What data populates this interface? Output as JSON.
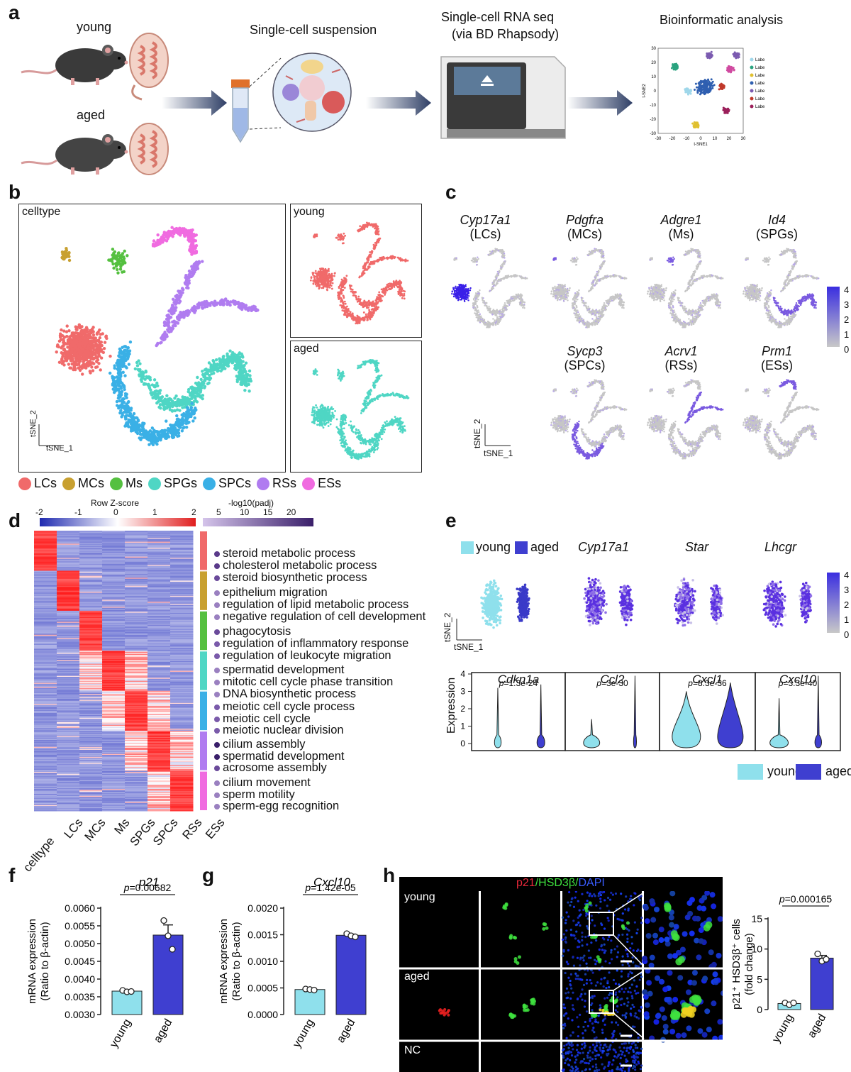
{
  "panels": {
    "a": "a",
    "b": "b",
    "c": "c",
    "d": "d",
    "e": "e",
    "f": "f",
    "g": "g",
    "h": "h"
  },
  "panel_a": {
    "young": "young",
    "aged": "aged",
    "suspension": "Single-cell suspension",
    "seq_line1": "Single-cell RNA seq",
    "seq_line2": "(via BD Rhapsody)",
    "bioinfo": "Bioinformatic analysis",
    "mini_tsne": {
      "xlabel": "t-SNE1",
      "ylabel": "t-SNE2",
      "x_ticks": [
        "-30",
        "-20",
        "-10",
        "0",
        "10",
        "20",
        "30"
      ],
      "y_ticks": [
        "30",
        "20",
        "10",
        "0",
        "-10",
        "-20",
        "-30"
      ],
      "legend": [
        "Label",
        "Label",
        "Label",
        "Label",
        "Label",
        "Label",
        "Label"
      ],
      "colors": [
        "#9fd7ea",
        "#2aa37f",
        "#e0c030",
        "#2f5fb0",
        "#7b5bb0",
        "#c0392b",
        "#9b1f5a"
      ]
    }
  },
  "panel_b": {
    "celltype": "celltype",
    "young": "young",
    "aged": "aged",
    "xaxis": "tSNE_1",
    "yaxis": "tSNE_2",
    "legend": [
      {
        "label": "LCs",
        "color": "#f06a6a"
      },
      {
        "label": "MCs",
        "color": "#c8a030"
      },
      {
        "label": "Ms",
        "color": "#55c040"
      },
      {
        "label": "SPGs",
        "color": "#4fd6c4"
      },
      {
        "label": "SPCs",
        "color": "#3ab0e6"
      },
      {
        "label": "RSs",
        "color": "#b07cf0"
      },
      {
        "label": "ESs",
        "color": "#f06be0"
      }
    ]
  },
  "panel_c": {
    "genes": [
      {
        "gene": "Cyp17a1",
        "cell": "(LCs)"
      },
      {
        "gene": "Pdgfra",
        "cell": "(MCs)"
      },
      {
        "gene": "Adgre1",
        "cell": "(Ms)"
      },
      {
        "gene": "Id4",
        "cell": "(SPGs)"
      },
      {
        "gene": "Sycp3",
        "cell": "(SPCs)"
      },
      {
        "gene": "Acrv1",
        "cell": "(RSs)"
      },
      {
        "gene": "Prm1",
        "cell": "(ESs)"
      }
    ],
    "colorbar_ticks": [
      "4",
      "3",
      "2",
      "1",
      "0"
    ],
    "xaxis": "tSNE_1",
    "yaxis": "tSNE_2"
  },
  "panel_d": {
    "zscore_title": "Row Z-score",
    "zscore_ticks": [
      "-2",
      "-1",
      "0",
      "1",
      "2"
    ],
    "padj_title": "-log10(padj)",
    "padj_ticks": [
      "5",
      "10",
      "15",
      "20"
    ],
    "columns": [
      "celltype",
      "LCs",
      "MCs",
      "Ms",
      "SPGs",
      "SPCs",
      "RSs",
      "ESs"
    ],
    "group_colors": [
      "#f06a6a",
      "#c8a030",
      "#55c040",
      "#4fd6c4",
      "#3ab0e6",
      "#b07cf0",
      "#f06be0"
    ],
    "terms": [
      {
        "text": "steroid metabolic process",
        "color": "#5a3a8a"
      },
      {
        "text": "cholesterol metabolic process",
        "color": "#5a3a8a"
      },
      {
        "text": "steroid biosynthetic process",
        "color": "#6a4a9a"
      },
      {
        "text": "epithelium migration",
        "color": "#9a80c0"
      },
      {
        "text": "regulation of lipid metabolic process",
        "color": "#9a80c0"
      },
      {
        "text": "negative regulation of cell development",
        "color": "#9a80c0"
      },
      {
        "text": "phagocytosis",
        "color": "#6a4a9a"
      },
      {
        "text": "regulation of inflammatory response",
        "color": "#7a5aaa"
      },
      {
        "text": "regulation of leukocyte migration",
        "color": "#7a5aaa"
      },
      {
        "text": "spermatid development",
        "color": "#9a80c0"
      },
      {
        "text": "mitotic cell cycle phase transition",
        "color": "#9a80c0"
      },
      {
        "text": "DNA biosynthetic process",
        "color": "#9a80c0"
      },
      {
        "text": "meiotic cell cycle process",
        "color": "#7a5aaa"
      },
      {
        "text": "meiotic cell cycle",
        "color": "#7a5aaa"
      },
      {
        "text": "meiotic nuclear division",
        "color": "#7a5aaa"
      },
      {
        "text": "cilium assembly",
        "color": "#3a1f6a"
      },
      {
        "text": "spermatid development",
        "color": "#3a1f6a"
      },
      {
        "text": "acrosome assembly",
        "color": "#6a4a9a"
      },
      {
        "text": "cilium movement",
        "color": "#9a80c0"
      },
      {
        "text": "sperm motility",
        "color": "#9a80c0"
      },
      {
        "text": "sperm-egg recognition",
        "color": "#9a80c0"
      }
    ]
  },
  "panel_e": {
    "legend_young": "young",
    "legend_aged": "aged",
    "genes": [
      "Cyp17a1",
      "Star",
      "Lhcgr"
    ],
    "colorbar_ticks": [
      "4",
      "3",
      "2",
      "1",
      "0"
    ],
    "xaxis": "tSNE_1",
    "yaxis": "tSNE_2",
    "violin_ylabel": "Expression",
    "violin_yticks": [
      "4",
      "3",
      "2",
      "1",
      "0"
    ],
    "violins": [
      {
        "gene": "Cdkn1a",
        "p": "1.3e-24"
      },
      {
        "gene": "Ccl2",
        "p": "3e-30"
      },
      {
        "gene": "Cxcl1",
        "p": "8.3e-36"
      },
      {
        "gene": "Cxcl10",
        "p": "3.3e-40"
      }
    ],
    "p_prefix": "p",
    "bottom_legend": {
      "young": "young",
      "aged": "aged",
      "young_color": "#8fe0ec",
      "aged_color": "#3f3fd0"
    }
  },
  "chart_data": [
    {
      "type": "bar",
      "title": "p21",
      "categories": [
        "young",
        "aged"
      ],
      "values": [
        0.00366,
        0.00524
      ],
      "points": [
        [
          0.00368,
          0.00364,
          0.00365
        ],
        [
          0.00565,
          0.00522,
          0.00484
        ]
      ],
      "ylabel_line1": "mRNA expression",
      "ylabel_line2": "(Ratio to β-actin)",
      "ylim": [
        0.003,
        0.006
      ],
      "yticks": [
        "0.0060",
        "0.0055",
        "0.0050",
        "0.0045",
        "0.0040",
        "0.0035",
        "0.0030"
      ],
      "p_text": "=0.00682"
    },
    {
      "type": "bar",
      "title": "Cxcl10",
      "categories": [
        "young",
        "aged"
      ],
      "values": [
        0.00047,
        0.00149
      ],
      "points": [
        [
          0.00048,
          0.00047,
          0.00046
        ],
        [
          0.00152,
          0.00148,
          0.00146
        ]
      ],
      "ylabel_line1": "mRNA expression",
      "ylabel_line2": "(Ratio to β-actin)",
      "ylim": [
        0,
        0.002
      ],
      "yticks": [
        "0.0020",
        "0.0015",
        "0.0010",
        "0.0005",
        "0.0000"
      ],
      "p_text": "=1.42e-05"
    },
    {
      "type": "bar",
      "categories": [
        "young",
        "aged"
      ],
      "values": [
        1.0,
        8.5
      ],
      "points": [
        [
          1.1,
          0.8,
          1.1
        ],
        [
          9.2,
          8.0,
          8.3
        ]
      ],
      "ylabel_line1": "p21⁺ HSD3β⁺ cells",
      "ylabel_line2": "(fold change)",
      "ylim": [
        0,
        15
      ],
      "yticks": [
        "15",
        "10",
        "5",
        "0"
      ],
      "p_text": "=0.000165"
    }
  ],
  "panel_h": {
    "title_p21": "p21",
    "title_hsd": "/HSD3β/",
    "title_dapi": "DAPI",
    "rows": [
      "young",
      "aged",
      "NC"
    ]
  }
}
